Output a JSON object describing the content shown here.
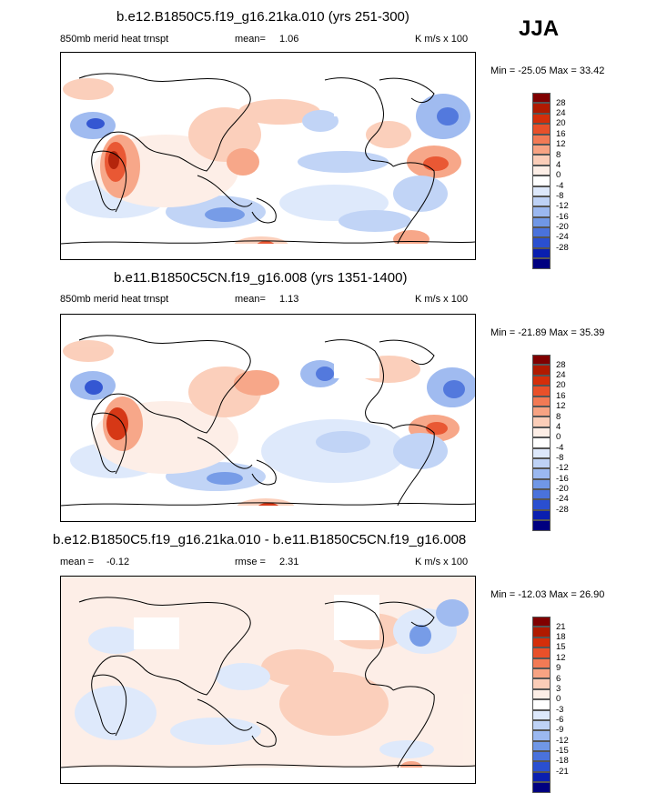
{
  "season": "JJA",
  "panels": [
    {
      "title": "b.e12.B1850C5.f19_g16.21ka.010 (yrs 251-300)",
      "left_label": "850mb merid heat trnspt",
      "mean_label": "mean=",
      "mean_value": "1.06",
      "units": "K m/s x 100",
      "minmax": "Min = -25.05 Max = 33.42",
      "colorbar_labels": [
        "28",
        "24",
        "20",
        "16",
        "12",
        "8",
        "4",
        "0",
        "-4",
        "-8",
        "-12",
        "-16",
        "-20",
        "-24",
        "-28"
      ]
    },
    {
      "title": "b.e11.B1850C5CN.f19_g16.008 (yrs 1351-1400)",
      "left_label": "850mb merid heat trnspt",
      "mean_label": "mean=",
      "mean_value": "1.13",
      "units": "K m/s x 100",
      "minmax": "Min = -21.89 Max = 35.39",
      "colorbar_labels": [
        "28",
        "24",
        "20",
        "16",
        "12",
        "8",
        "4",
        "0",
        "-4",
        "-8",
        "-12",
        "-16",
        "-20",
        "-24",
        "-28"
      ]
    },
    {
      "title": "b.e12.B1850C5.f19_g16.21ka.010 - b.e11.B1850C5CN.f19_g16.008",
      "left_label": "mean =",
      "left_value": "-0.12",
      "rmse_label": "rmse =",
      "rmse_value": "2.31",
      "units": "K m/s x 100",
      "minmax": "Min = -12.03 Max = 26.90",
      "colorbar_labels": [
        "21",
        "18",
        "15",
        "12",
        "9",
        "6",
        "3",
        "0",
        "-3",
        "-6",
        "-9",
        "-12",
        "-15",
        "-18",
        "-21"
      ]
    }
  ],
  "colorbar_colors": [
    "#800000",
    "#b01a00",
    "#d42e0a",
    "#e8502a",
    "#f27a55",
    "#f7a383",
    "#fbcdb8",
    "#fdeee6",
    "#ffffff",
    "#dde8fb",
    "#bed2f6",
    "#9bb8f0",
    "#7097e6",
    "#4a72dc",
    "#2a4fd0",
    "#0a1fb0",
    "#000080"
  ]
}
